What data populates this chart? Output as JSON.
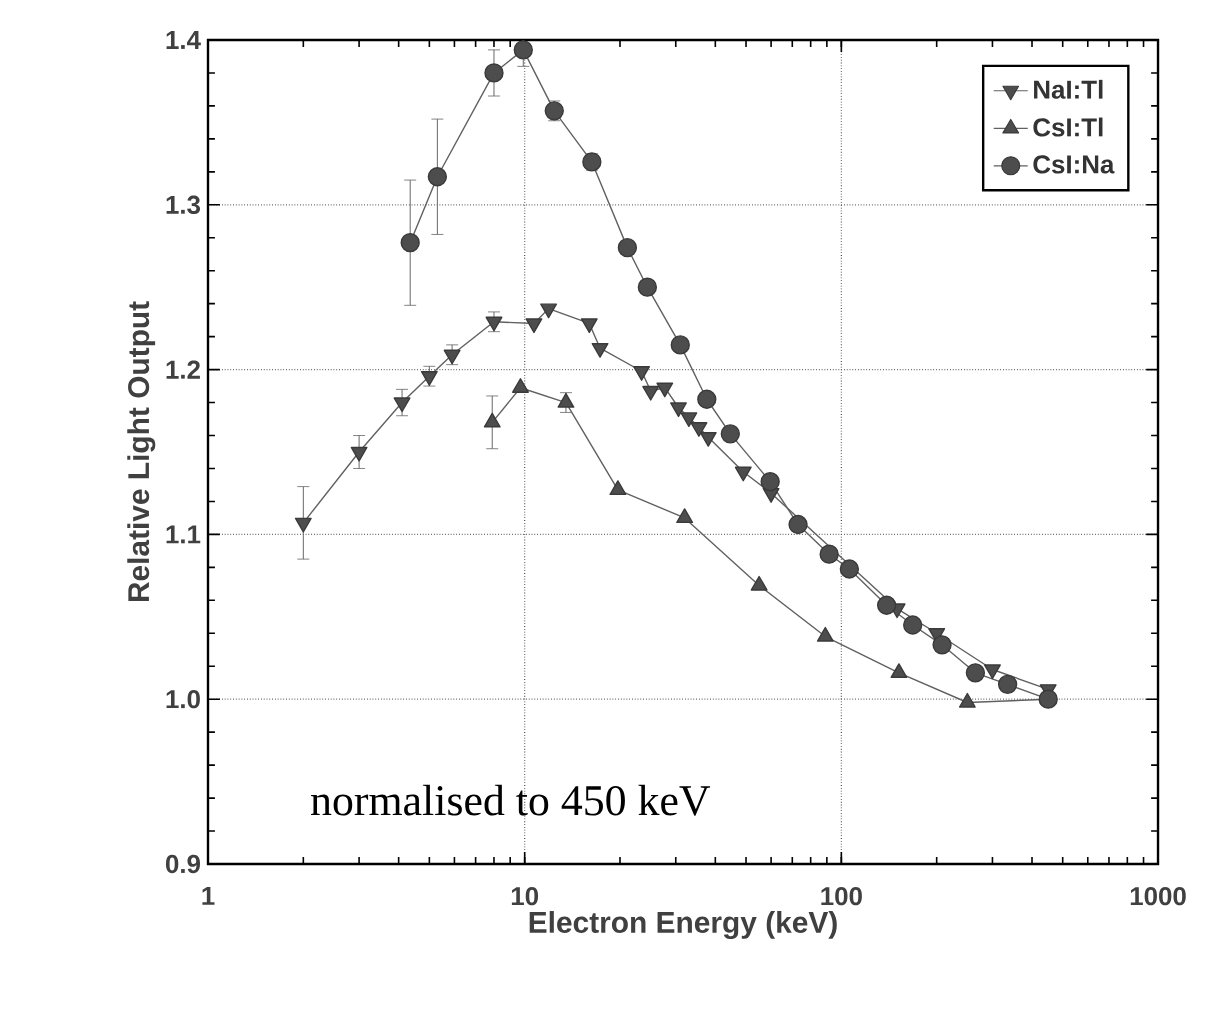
{
  "chart_data": {
    "type": "line",
    "xlabel": "Electron Energy (keV)",
    "ylabel": "Relative Light Output",
    "log": "x",
    "xlim": [
      1,
      1000
    ],
    "ylim": [
      0.9,
      1.4
    ],
    "xticks": [
      1,
      10,
      100,
      1000
    ],
    "yticks": [
      0.9,
      {
        "value": 1.0,
        "label": "1.0"
      },
      1.1,
      1.2,
      1.3,
      1.4
    ],
    "grid": true,
    "legend": "top right",
    "line_style": "solid",
    "annotations": [
      "normalised to 450 keV"
    ],
    "series": [
      {
        "name": "NaI:Tl",
        "color": "#606060",
        "marker": "triangle-down",
        "x": [
          2,
          3,
          4.1,
          5,
          5.9,
          8,
          10.7,
          11.9,
          16,
          17.3,
          23.4,
          25,
          27.7,
          30.6,
          33,
          35.5,
          38,
          49,
          60,
          75,
          100,
          150,
          200,
          300,
          450
        ],
        "values": [
          1.107,
          1.15,
          1.18,
          1.196,
          1.209,
          1.229,
          1.228,
          1.237,
          1.228,
          1.213,
          1.199,
          1.187,
          1.189,
          1.177,
          1.171,
          1.165,
          1.159,
          1.138,
          1.125,
          null,
          null,
          1.055,
          1.04,
          1.018,
          1.006
        ],
        "errors": [
          0.022,
          0.01,
          0.008,
          0.006,
          0.006,
          0.006,
          null,
          null,
          null,
          null,
          null,
          null,
          null,
          null,
          null,
          null,
          null,
          null,
          null,
          null,
          null,
          null,
          null,
          null,
          null
        ]
      },
      {
        "name": "CsI:Tl",
        "color": "#606060",
        "marker": "triangle",
        "x": [
          7.9,
          9.7,
          13.5,
          19.7,
          32,
          55,
          89,
          152,
          250,
          450
        ],
        "values": [
          1.168,
          1.189,
          1.18,
          1.127,
          1.11,
          1.069,
          1.038,
          1.016,
          0.998,
          1.0
        ],
        "errors": [
          0.016,
          null,
          0.006,
          null,
          null,
          null,
          null,
          null,
          null,
          null
        ]
      },
      {
        "name": "CsI:Na",
        "color": "#606060",
        "marker": "circle",
        "x": [
          4.35,
          5.3,
          8,
          9.9,
          12.4,
          16.3,
          21.1,
          24.4,
          31,
          37.6,
          44.6,
          59.6,
          73,
          91.5,
          106,
          139,
          168,
          208,
          265,
          335,
          450
        ],
        "values": [
          1.277,
          1.317,
          1.38,
          1.394,
          1.357,
          1.326,
          1.274,
          1.25,
          1.215,
          1.182,
          1.161,
          1.132,
          1.106,
          1.088,
          1.079,
          1.057,
          1.045,
          1.033,
          1.016,
          1.009,
          1.0
        ],
        "errors": [
          0.038,
          0.035,
          0.014,
          0.01,
          0.006,
          0.005,
          null,
          null,
          null,
          null,
          null,
          null,
          null,
          null,
          null,
          null,
          null,
          null,
          null,
          null,
          null
        ]
      }
    ]
  }
}
